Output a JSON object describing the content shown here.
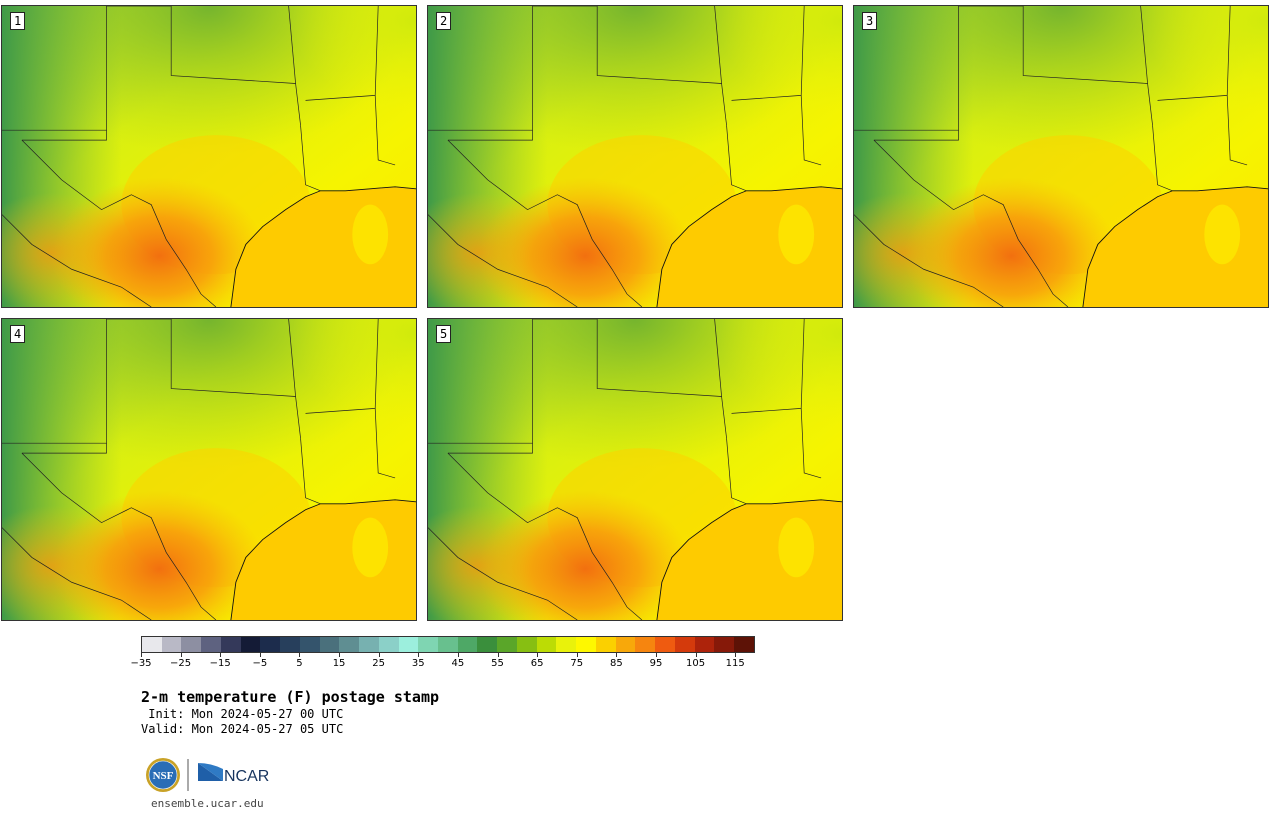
{
  "panels": [
    {
      "label": "1"
    },
    {
      "label": "2"
    },
    {
      "label": "3"
    },
    {
      "label": "4"
    },
    {
      "label": "5"
    }
  ],
  "colorbar": {
    "colors": [
      "#e8e8ec",
      "#b9b9c6",
      "#8d8fa2",
      "#5e6280",
      "#34395a",
      "#141b36",
      "#1c2c4c",
      "#273f5c",
      "#34546c",
      "#4a707c",
      "#5f8e92",
      "#77b1b0",
      "#8bd0c8",
      "#9cefdd",
      "#7fd5b2",
      "#68c08e",
      "#4ea866",
      "#3a8f3c",
      "#5aa629",
      "#87bf12",
      "#bcdc05",
      "#e9f20b",
      "#fef800",
      "#fbd000",
      "#f8a80a",
      "#f6850f",
      "#ef5b10",
      "#d43a0c",
      "#ad230b",
      "#861909",
      "#5d1206"
    ],
    "ticks": [
      "−35",
      "−25",
      "−15",
      "−5",
      "5",
      "15",
      "25",
      "35",
      "45",
      "55",
      "65",
      "75",
      "85",
      "95",
      "105",
      "115"
    ]
  },
  "title": "2-m temperature (F) postage stamp",
  "init": " Init: Mon 2024-05-27 00 UTC",
  "valid": "Valid: Mon 2024-05-27 05 UTC",
  "logos": {
    "nsf": "NSF",
    "ncar": "NCAR"
  },
  "site": "ensemble.ucar.edu"
}
